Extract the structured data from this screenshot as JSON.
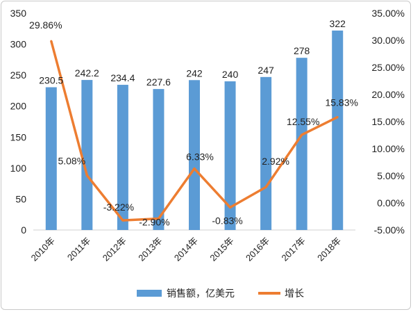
{
  "chart_data": {
    "type": "bar+line",
    "categories": [
      "2010年",
      "2011年",
      "2012年",
      "2013年",
      "2014年",
      "2015年",
      "2016年",
      "2017年",
      "2018年"
    ],
    "series": [
      {
        "name": "销售额，亿美元",
        "type": "bar",
        "axis": "left",
        "values": [
          230.5,
          242.2,
          234.4,
          227.6,
          242,
          240,
          247,
          278,
          322
        ],
        "labels": [
          "230.5",
          "242.2",
          "234.4",
          "227.6",
          "242",
          "240",
          "247",
          "278",
          "322"
        ],
        "color": "#5b9bd5"
      },
      {
        "name": "增长",
        "type": "line",
        "axis": "right",
        "values": [
          29.86,
          5.08,
          -3.22,
          -2.9,
          6.33,
          -0.83,
          2.92,
          12.55,
          15.83
        ],
        "labels": [
          "29.86%",
          "5.08%",
          "-3.22%",
          "-2.90%",
          "6.33%",
          "-0.83%",
          "2.92%",
          "12.55%",
          "15.83%"
        ],
        "color": "#ed7d31"
      }
    ],
    "y_left": {
      "min": 0,
      "max": 350,
      "step": 50,
      "ticks": [
        "0",
        "50",
        "100",
        "150",
        "200",
        "250",
        "300",
        "350"
      ]
    },
    "y_right": {
      "min": -5,
      "max": 35,
      "step": 5,
      "ticks": [
        "-5.00%",
        "0.00%",
        "5.00%",
        "10.00%",
        "15.00%",
        "20.00%",
        "25.00%",
        "30.00%",
        "35.00%"
      ]
    },
    "legend_position": "bottom",
    "grid": false
  }
}
